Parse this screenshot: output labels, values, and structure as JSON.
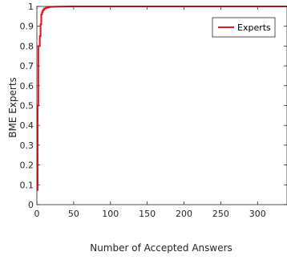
{
  "chart_data": {
    "type": "line",
    "title": "",
    "xlabel": "Number of Accepted Answers",
    "ylabel": "BME Experts",
    "xlim": [
      0,
      340
    ],
    "ylim": [
      0,
      1
    ],
    "xticks": [
      0,
      50,
      100,
      150,
      200,
      250,
      300
    ],
    "yticks": [
      0,
      0.1,
      0.2,
      0.3,
      0.4,
      0.5,
      0.6,
      0.7,
      0.8,
      0.9,
      1
    ],
    "grid": false,
    "legend_position": "top-right",
    "series": [
      {
        "name": "Experts",
        "color": "#e8121b",
        "x": [
          1,
          1,
          2,
          2,
          3,
          3,
          4,
          4,
          5,
          5,
          6,
          6,
          7,
          7,
          8,
          8,
          9,
          9,
          10,
          10,
          12,
          12,
          14,
          14,
          17,
          17,
          22,
          30,
          50,
          100,
          200,
          340
        ],
        "y": [
          0.07,
          0.5,
          0.5,
          0.8,
          0.8,
          0.8,
          0.8,
          0.85,
          0.85,
          0.91,
          0.91,
          0.96,
          0.96,
          0.97,
          0.97,
          0.98,
          0.98,
          0.985,
          0.985,
          0.99,
          0.99,
          0.993,
          0.993,
          0.995,
          0.995,
          0.997,
          0.998,
          0.999,
          1.0,
          1.0,
          1.0,
          1.0
        ]
      }
    ]
  }
}
